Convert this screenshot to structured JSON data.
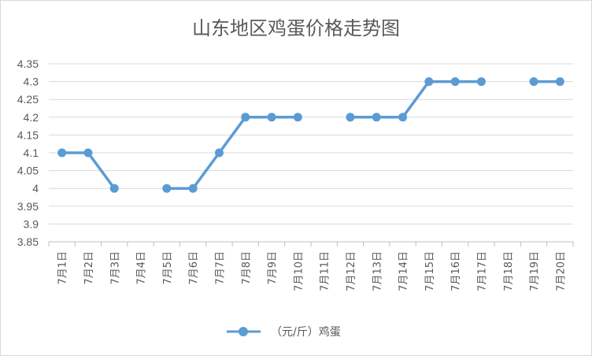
{
  "chart_data": {
    "type": "line",
    "title": "山东地区鸡蛋价格走势图",
    "categories": [
      "7月1日",
      "7月2日",
      "7月3日",
      "7月4日",
      "7月5日",
      "7月6日",
      "7月7日",
      "7月8日",
      "7月9日",
      "7月10日",
      "7月11日",
      "7月12日",
      "7月13日",
      "7月14日",
      "7月15日",
      "7月16日",
      "7月17日",
      "7月18日",
      "7月19日",
      "7月20日"
    ],
    "series": [
      {
        "name": "（元/斤）鸡蛋",
        "color": "#5b9bd5",
        "values": [
          4.1,
          4.1,
          4.0,
          null,
          4.0,
          4.0,
          4.1,
          4.2,
          4.2,
          4.2,
          null,
          4.2,
          4.2,
          4.2,
          4.3,
          4.3,
          4.3,
          null,
          4.3,
          4.3
        ]
      }
    ],
    "yticks": [
      "3.85",
      "3.9",
      "3.95",
      "4",
      "4.05",
      "4.1",
      "4.15",
      "4.2",
      "4.25",
      "4.3",
      "4.35"
    ],
    "ylim": [
      3.85,
      4.35
    ],
    "grid": true,
    "legend": "bottom-center"
  }
}
